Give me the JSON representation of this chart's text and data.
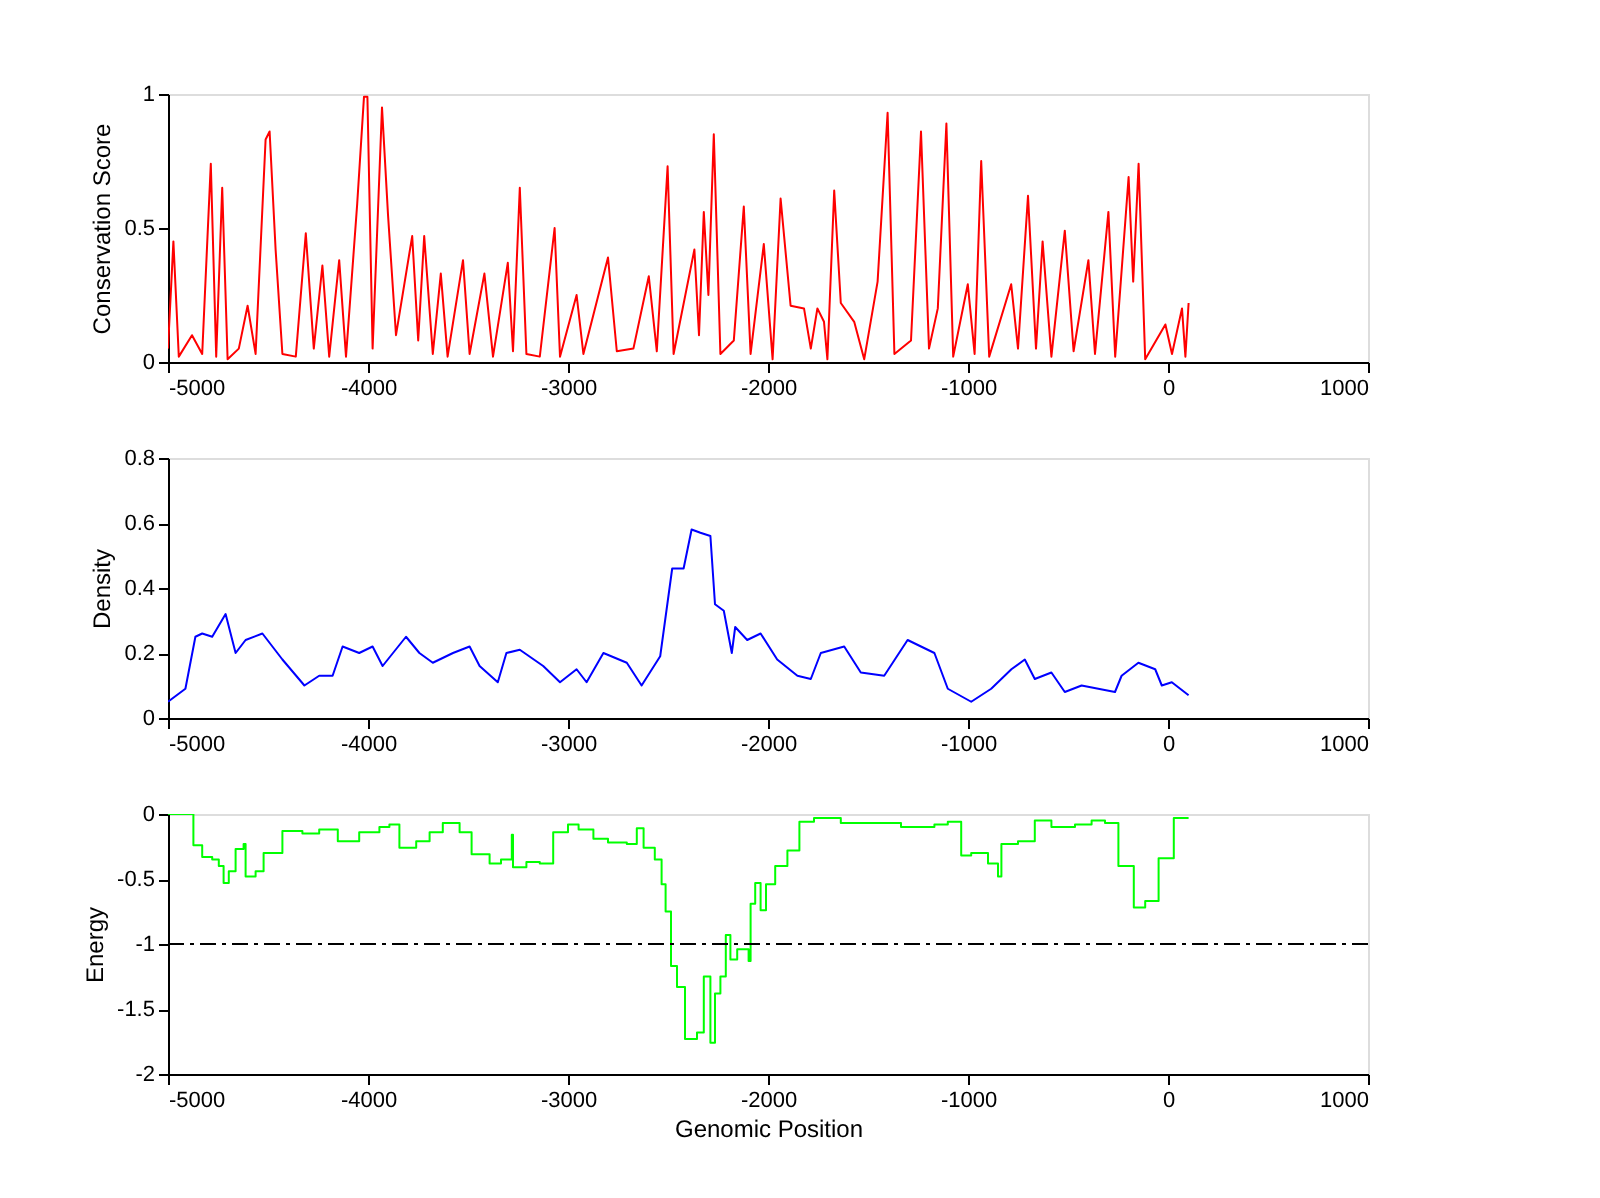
{
  "chart_data": [
    {
      "type": "line",
      "ylabel": "Conservation Score",
      "xlim": [
        -5000,
        1000
      ],
      "xticks": [
        -5000,
        -4000,
        -3000,
        -2000,
        -1000,
        0,
        1000
      ],
      "ylim": [
        0,
        1
      ],
      "yticks": [
        0,
        0.5,
        1
      ],
      "grid": false,
      "line_style": "solid",
      "series": [
        {
          "color": "#ff0000",
          "x": [
            -5000,
            -4973,
            -4946,
            -4880,
            -4829,
            -4786,
            -4759,
            -4729,
            -4702,
            -4646,
            -4602,
            -4562,
            -4512,
            -4492,
            -4462,
            -4428,
            -4361,
            -4311,
            -4271,
            -4228,
            -4194,
            -4144,
            -4110,
            -4054,
            -4020,
            -4003,
            -3977,
            -3930,
            -3900,
            -3860,
            -3779,
            -3749,
            -3719,
            -3676,
            -3636,
            -3602,
            -3525,
            -3492,
            -3418,
            -3375,
            -3301,
            -3275,
            -3241,
            -3208,
            -3141,
            -3067,
            -3040,
            -2957,
            -2923,
            -2800,
            -2756,
            -2673,
            -2596,
            -2556,
            -2502,
            -2472,
            -2368,
            -2345,
            -2321,
            -2298,
            -2271,
            -2238,
            -2171,
            -2121,
            -2087,
            -2021,
            -1977,
            -1937,
            -1887,
            -1820,
            -1786,
            -1753,
            -1720,
            -1703,
            -1669,
            -1636,
            -1569,
            -1519,
            -1452,
            -1402,
            -1368,
            -1285,
            -1235,
            -1195,
            -1151,
            -1108,
            -1074,
            -1001,
            -967,
            -934,
            -894,
            -784,
            -750,
            -700,
            -660,
            -627,
            -583,
            -516,
            -472,
            -398,
            -365,
            -298,
            -264,
            -197,
            -174,
            -147,
            -114,
            -13,
            20,
            70,
            87,
            103
          ],
          "values": [
            0.05,
            0.45,
            0.02,
            0.1,
            0.03,
            0.74,
            0.02,
            0.65,
            0.01,
            0.05,
            0.21,
            0.03,
            0.83,
            0.86,
            0.42,
            0.03,
            0.02,
            0.48,
            0.05,
            0.36,
            0.02,
            0.38,
            0.02,
            0.59,
            0.99,
            0.99,
            0.05,
            0.95,
            0.55,
            0.1,
            0.47,
            0.08,
            0.47,
            0.03,
            0.33,
            0.02,
            0.38,
            0.03,
            0.33,
            0.02,
            0.37,
            0.04,
            0.65,
            0.03,
            0.02,
            0.5,
            0.02,
            0.25,
            0.03,
            0.39,
            0.04,
            0.05,
            0.32,
            0.04,
            0.73,
            0.03,
            0.42,
            0.1,
            0.56,
            0.25,
            0.85,
            0.03,
            0.08,
            0.58,
            0.03,
            0.44,
            0.01,
            0.61,
            0.21,
            0.2,
            0.05,
            0.2,
            0.15,
            0.01,
            0.64,
            0.22,
            0.15,
            0.01,
            0.3,
            0.93,
            0.03,
            0.08,
            0.86,
            0.05,
            0.2,
            0.89,
            0.02,
            0.29,
            0.03,
            0.75,
            0.02,
            0.29,
            0.05,
            0.62,
            0.05,
            0.45,
            0.02,
            0.49,
            0.04,
            0.38,
            0.03,
            0.56,
            0.02,
            0.69,
            0.3,
            0.74,
            0.01,
            0.14,
            0.03,
            0.2,
            0.02,
            0.22
          ]
        }
      ]
    },
    {
      "type": "line",
      "ylabel": "Density",
      "xlim": [
        -5000,
        1000
      ],
      "xticks": [
        -5000,
        -4000,
        -3000,
        -2000,
        -1000,
        0,
        1000
      ],
      "ylim": [
        0,
        0.8
      ],
      "yticks": [
        0,
        0.2,
        0.4,
        0.6,
        0.8
      ],
      "grid": false,
      "line_style": "solid",
      "series": [
        {
          "color": "#0000ff",
          "x": [
            -5000,
            -4913,
            -4863,
            -4829,
            -4779,
            -4712,
            -4662,
            -4612,
            -4528,
            -4428,
            -4318,
            -4244,
            -4177,
            -4127,
            -4044,
            -3977,
            -3927,
            -3810,
            -3743,
            -3676,
            -3575,
            -3492,
            -3442,
            -3351,
            -3308,
            -3241,
            -3124,
            -3040,
            -2957,
            -2907,
            -2823,
            -2706,
            -2632,
            -2539,
            -2479,
            -2422,
            -2382,
            -2338,
            -2288,
            -2265,
            -2221,
            -2181,
            -2164,
            -2104,
            -2037,
            -1954,
            -1853,
            -1786,
            -1736,
            -1619,
            -1536,
            -1419,
            -1302,
            -1168,
            -1101,
            -984,
            -884,
            -783,
            -716,
            -666,
            -583,
            -516,
            -432,
            -265,
            -232,
            -148,
            -64,
            -31,
            19,
            103
          ],
          "values": [
            0.05,
            0.09,
            0.25,
            0.26,
            0.25,
            0.32,
            0.2,
            0.24,
            0.26,
            0.18,
            0.1,
            0.13,
            0.13,
            0.22,
            0.2,
            0.22,
            0.16,
            0.25,
            0.2,
            0.17,
            0.2,
            0.22,
            0.16,
            0.11,
            0.2,
            0.21,
            0.16,
            0.11,
            0.15,
            0.11,
            0.2,
            0.17,
            0.1,
            0.19,
            0.46,
            0.46,
            0.58,
            0.57,
            0.56,
            0.35,
            0.33,
            0.2,
            0.28,
            0.24,
            0.26,
            0.18,
            0.13,
            0.12,
            0.2,
            0.22,
            0.14,
            0.13,
            0.24,
            0.2,
            0.09,
            0.05,
            0.09,
            0.15,
            0.18,
            0.12,
            0.14,
            0.08,
            0.1,
            0.08,
            0.13,
            0.17,
            0.15,
            0.1,
            0.11,
            0.07
          ]
        }
      ]
    },
    {
      "type": "step",
      "xlabel": "Genomic Position",
      "ylabel": "Energy",
      "xlim": [
        -5000,
        1000
      ],
      "xticks": [
        -5000,
        -4000,
        -3000,
        -2000,
        -1000,
        0,
        1000
      ],
      "ylim": [
        -2,
        0
      ],
      "yticks": [
        -2,
        -1.5,
        -1,
        -0.5,
        0
      ],
      "grid": false,
      "line_style": "solid",
      "ref_lines": [
        {
          "axis": "y",
          "value": -1,
          "color": "#000000",
          "line_style": "dashed"
        }
      ],
      "series": [
        {
          "color": "#00ff00",
          "x": [
            -5000,
            -4913,
            -4873,
            -4829,
            -4779,
            -4746,
            -4722,
            -4696,
            -4662,
            -4622,
            -4612,
            -4562,
            -4522,
            -4428,
            -4328,
            -4244,
            -4151,
            -4044,
            -3943,
            -3893,
            -3843,
            -3759,
            -3692,
            -3626,
            -3542,
            -3482,
            -3392,
            -3335,
            -3281,
            -3275,
            -3208,
            -3141,
            -3074,
            -3000,
            -2947,
            -2873,
            -2800,
            -2706,
            -2656,
            -2622,
            -2566,
            -2532,
            -2512,
            -2485,
            -2455,
            -2415,
            -2355,
            -2321,
            -2288,
            -2265,
            -2238,
            -2211,
            -2188,
            -2154,
            -2097,
            -2087,
            -2064,
            -2037,
            -2010,
            -1964,
            -1903,
            -1843,
            -1770,
            -1636,
            -1469,
            -1335,
            -1168,
            -1101,
            -1034,
            -984,
            -900,
            -850,
            -833,
            -750,
            -666,
            -583,
            -465,
            -382,
            -315,
            -248,
            -171,
            -114,
            -47,
            29,
            103
          ],
          "values": [
            0,
            0,
            -0.24,
            -0.33,
            -0.35,
            -0.4,
            -0.53,
            -0.44,
            -0.27,
            -0.23,
            -0.48,
            -0.44,
            -0.3,
            -0.13,
            -0.15,
            -0.12,
            -0.21,
            -0.14,
            -0.1,
            -0.08,
            -0.26,
            -0.21,
            -0.14,
            -0.07,
            -0.14,
            -0.31,
            -0.38,
            -0.35,
            -0.16,
            -0.41,
            -0.37,
            -0.38,
            -0.14,
            -0.08,
            -0.12,
            -0.19,
            -0.22,
            -0.23,
            -0.11,
            -0.26,
            -0.35,
            -0.54,
            -0.75,
            -1.17,
            -1.33,
            -1.73,
            -1.68,
            -1.25,
            -1.76,
            -1.38,
            -1.25,
            -0.93,
            -1.12,
            -1.04,
            -1.13,
            -0.69,
            -0.53,
            -0.74,
            -0.54,
            -0.4,
            -0.28,
            -0.06,
            -0.03,
            -0.07,
            -0.07,
            -0.1,
            -0.08,
            -0.06,
            -0.32,
            -0.3,
            -0.38,
            -0.48,
            -0.23,
            -0.21,
            -0.05,
            -0.1,
            -0.08,
            -0.05,
            -0.07,
            -0.4,
            -0.72,
            -0.67,
            -0.34,
            -0.03,
            -0.03
          ]
        }
      ]
    }
  ]
}
